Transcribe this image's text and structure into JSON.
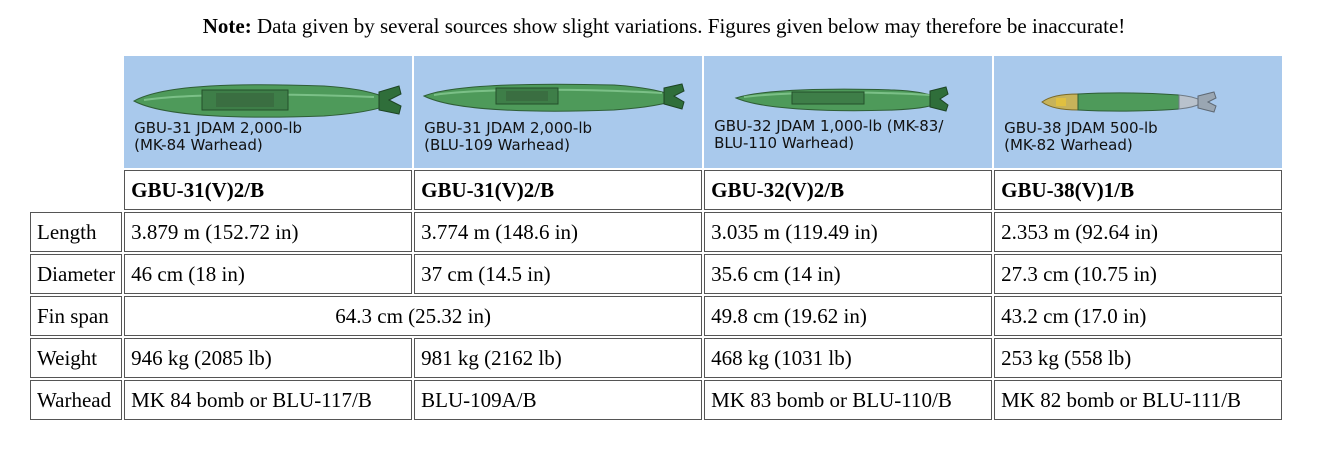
{
  "note": {
    "bold": "Note:",
    "text": " Data given by several sources show slight variations. Figures given below may therefore be inaccurate!"
  },
  "bombs": [
    {
      "caption_line1": "GBU-31 JDAM 2,000-lb",
      "caption_line2": "(MK-84 Warhead)",
      "designation": "GBU-31(V)2/B",
      "length": "3.879 m (152.72 in)",
      "diameter": "46 cm (18 in)",
      "weight": "946 kg (2085 lb)",
      "warhead": "MK 84 bomb or BLU-117/B",
      "icon": "bomb-image-icon"
    },
    {
      "caption_line1": "GBU-31 JDAM 2,000-lb",
      "caption_line2": "(BLU-109 Warhead)",
      "designation": "GBU-31(V)2/B",
      "length": "3.774 m (148.6 in)",
      "diameter": "37 cm (14.5 in)",
      "weight": "981 kg (2162 lb)",
      "warhead": "BLU-109A/B",
      "icon": "bomb-image-icon"
    },
    {
      "caption_line1": "GBU-32 JDAM 1,000-lb (MK-83/",
      "caption_line2": "BLU-110 Warhead)",
      "designation": "GBU-32(V)2/B",
      "length": "3.035 m (119.49 in)",
      "diameter": "35.6 cm (14 in)",
      "fin_span": "49.8 cm (19.62 in)",
      "weight": "468 kg (1031 lb)",
      "warhead": "MK 83 bomb or BLU-110/B",
      "icon": "bomb-image-icon"
    },
    {
      "caption_line1": "GBU-38 JDAM 500-lb",
      "caption_line2": "(MK-82 Warhead)",
      "designation": "GBU-38(V)1/B",
      "length": "2.353 m (92.64 in)",
      "diameter": "27.3 cm (10.75 in)",
      "fin_span": "43.2 cm (17.0 in)",
      "weight": "253 kg (558 lb)",
      "warhead": "MK 82 bomb or BLU-111/B",
      "icon": "bomb-image-icon"
    }
  ],
  "shared_fin_span_gbu31": "64.3 cm (25.32 in)",
  "row_labels": {
    "length": "Length",
    "diameter": "Diameter",
    "fin_span": "Fin span",
    "weight": "Weight",
    "warhead": "Warhead"
  },
  "colors": {
    "image_background": "#a9c9ec",
    "bomb_body": "#4e9a5a",
    "bomb_tail": "#2f6e3a"
  }
}
